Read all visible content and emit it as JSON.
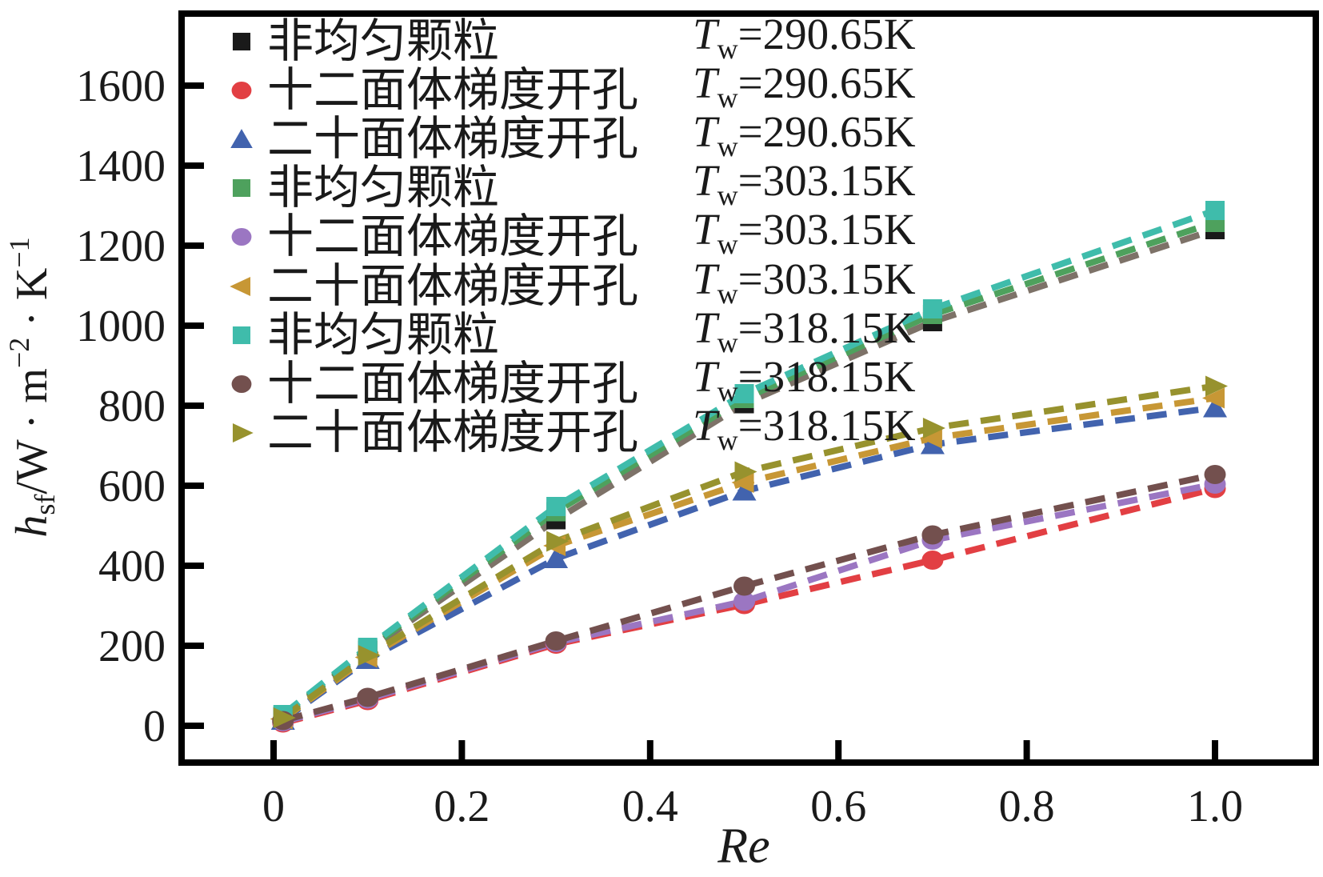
{
  "figure": {
    "background": "#ffffff",
    "frame_color": "#000000"
  },
  "chart_data": {
    "type": "scatter",
    "title": "",
    "xlabel": "Re",
    "ylabel": "h_sf/W·m^−2·K^−1",
    "ylabel_parts": {
      "symbol": "h",
      "symbol_sub": "sf",
      "unit1": "/W · m",
      "sup1": "−2",
      "unit2": " · K",
      "sup2": "−1"
    },
    "x": [
      0.01,
      0.1,
      0.3,
      0.5,
      0.7,
      1.0
    ],
    "xticks": [
      {
        "label": "0",
        "value": 0
      },
      {
        "label": "0.2",
        "value": 0.2
      },
      {
        "label": "0.4",
        "value": 0.4
      },
      {
        "label": "0.6",
        "value": 0.6
      },
      {
        "label": "0.8",
        "value": 0.8
      },
      {
        "label": "1.0",
        "value": 1.0
      }
    ],
    "yticks": [
      {
        "label": "0",
        "value": 0
      },
      {
        "label": "200",
        "value": 200
      },
      {
        "label": "400",
        "value": 400
      },
      {
        "label": "600",
        "value": 600
      },
      {
        "label": "800",
        "value": 800
      },
      {
        "label": "1000",
        "value": 1000
      },
      {
        "label": "1200",
        "value": 1200
      },
      {
        "label": "1400",
        "value": 1400
      },
      {
        "label": "1600",
        "value": 1600
      }
    ],
    "xlim": [
      -0.1,
      1.11
    ],
    "ylim": [
      -90,
      1780
    ],
    "grid": false,
    "legend_position": "upper-left-inside",
    "legend": {
      "tw_symbol": "T",
      "tw_subscript": "w"
    },
    "series": [
      {
        "name": "非均匀颗粒",
        "tw": "=290.65K",
        "marker": "square",
        "color": "#1a1a1a",
        "line_color": "#7d7268",
        "values": [
          22,
          188,
          515,
          805,
          1010,
          1240
        ]
      },
      {
        "name": "十二面体梯度开孔",
        "tw": "=290.65K",
        "marker": "circle",
        "color": "#e23f43",
        "line_color": "#e23f43",
        "values": [
          7,
          63,
          204,
          303,
          414,
          593
        ]
      },
      {
        "name": "二十面体梯度开孔",
        "tw": "=290.65K",
        "marker": "triangle-up",
        "color": "#4263ae",
        "line_color": "#4263ae",
        "values": [
          14,
          166,
          418,
          587,
          703,
          795
        ]
      },
      {
        "name": "非均匀颗粒",
        "tw": "=303.15K",
        "marker": "square",
        "color": "#4ea15d",
        "line_color": "#4ea15d",
        "values": [
          25,
          192,
          535,
          818,
          1028,
          1258
        ]
      },
      {
        "name": "十二面体梯度开孔",
        "tw": "=303.15K",
        "marker": "circle",
        "color": "#9b76c2",
        "line_color": "#9b76c2",
        "values": [
          10,
          67,
          208,
          311,
          464,
          604
        ]
      },
      {
        "name": "二十面体梯度开孔",
        "tw": "=303.15K",
        "marker": "triangle-left",
        "color": "#c79735",
        "line_color": "#c79735",
        "values": [
          17,
          171,
          450,
          608,
          719,
          819
        ]
      },
      {
        "name": "非均匀颗粒",
        "tw": "=318.15K",
        "marker": "square",
        "color": "#3fbcab",
        "line_color": "#3fbcab",
        "values": [
          28,
          196,
          548,
          830,
          1042,
          1288
        ]
      },
      {
        "name": "十二面体梯度开孔",
        "tw": "=318.15K",
        "marker": "circle",
        "color": "#73504e",
        "line_color": "#73504e",
        "values": [
          13,
          71,
          212,
          349,
          477,
          628
        ]
      },
      {
        "name": "二十面体梯度开孔",
        "tw": "=318.15K",
        "marker": "triangle-right",
        "color": "#97922e",
        "line_color": "#97922e",
        "values": [
          20,
          176,
          461,
          635,
          744,
          849
        ]
      }
    ]
  }
}
